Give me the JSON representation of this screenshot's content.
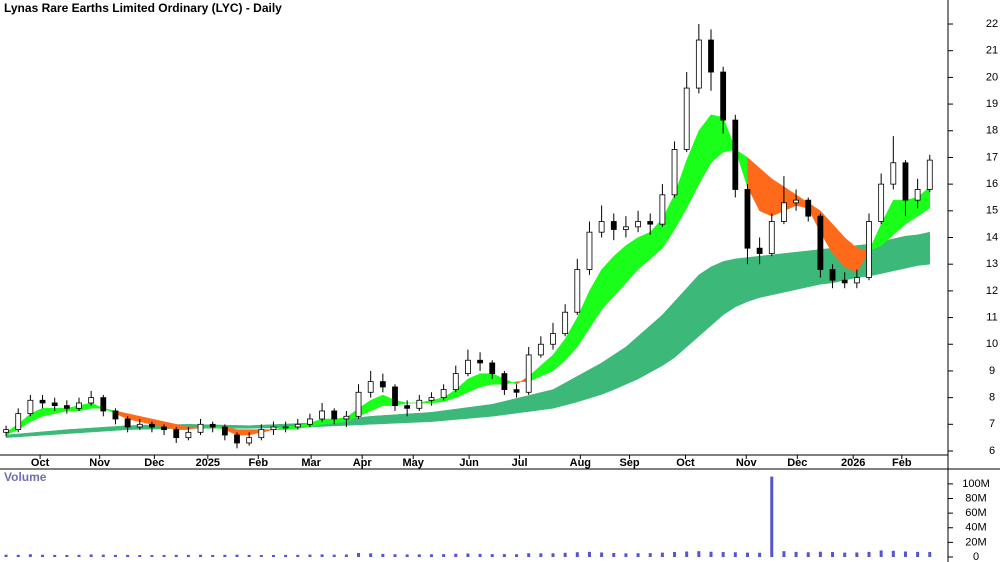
{
  "chart_data": {
    "type": "candlestick",
    "title": "Lynas Rare Earths Limited Ordinary (LYC) - Daily",
    "ohlc": [
      [
        6.7,
        6.95,
        6.55,
        6.8
      ],
      [
        6.8,
        7.6,
        6.7,
        7.4
      ],
      [
        7.4,
        8.1,
        7.3,
        7.9
      ],
      [
        7.9,
        8.1,
        7.6,
        7.8
      ],
      [
        7.8,
        8.0,
        7.5,
        7.7
      ],
      [
        7.7,
        7.9,
        7.4,
        7.6
      ],
      [
        7.6,
        8.0,
        7.5,
        7.8
      ],
      [
        7.8,
        8.25,
        7.7,
        8.0
      ],
      [
        8.0,
        8.1,
        7.3,
        7.5
      ],
      [
        7.5,
        7.6,
        7.0,
        7.2
      ],
      [
        7.2,
        7.3,
        6.7,
        6.9
      ],
      [
        6.9,
        7.2,
        6.8,
        7.0
      ],
      [
        7.0,
        7.1,
        6.7,
        6.9
      ],
      [
        6.9,
        7.0,
        6.6,
        6.8
      ],
      [
        6.8,
        6.9,
        6.3,
        6.5
      ],
      [
        6.5,
        6.9,
        6.4,
        6.7
      ],
      [
        6.7,
        7.2,
        6.6,
        7.0
      ],
      [
        7.0,
        7.1,
        6.7,
        6.9
      ],
      [
        6.9,
        7.0,
        6.4,
        6.6
      ],
      [
        6.6,
        6.7,
        6.1,
        6.3
      ],
      [
        6.3,
        6.7,
        6.2,
        6.5
      ],
      [
        6.5,
        7.0,
        6.4,
        6.8
      ],
      [
        6.8,
        7.1,
        6.6,
        6.9
      ],
      [
        6.9,
        7.1,
        6.7,
        6.9
      ],
      [
        6.9,
        7.2,
        6.8,
        7.0
      ],
      [
        7.0,
        7.4,
        6.9,
        7.2
      ],
      [
        7.2,
        7.8,
        7.1,
        7.5
      ],
      [
        7.5,
        7.6,
        7.0,
        7.2
      ],
      [
        7.2,
        7.5,
        6.9,
        7.3
      ],
      [
        7.3,
        8.5,
        7.2,
        8.2
      ],
      [
        8.2,
        9.0,
        8.0,
        8.6
      ],
      [
        8.6,
        8.9,
        8.2,
        8.4
      ],
      [
        8.4,
        8.5,
        7.5,
        7.7
      ],
      [
        7.7,
        7.9,
        7.3,
        7.6
      ],
      [
        7.6,
        8.1,
        7.5,
        7.9
      ],
      [
        7.9,
        8.2,
        7.7,
        8.0
      ],
      [
        8.0,
        8.5,
        7.9,
        8.3
      ],
      [
        8.3,
        9.2,
        8.2,
        8.9
      ],
      [
        8.9,
        9.8,
        8.8,
        9.4
      ],
      [
        9.4,
        9.7,
        9.0,
        9.3
      ],
      [
        9.3,
        9.4,
        8.7,
        8.9
      ],
      [
        8.9,
        9.0,
        8.1,
        8.3
      ],
      [
        8.3,
        8.5,
        8.0,
        8.2
      ],
      [
        8.2,
        9.9,
        8.1,
        9.6
      ],
      [
        9.6,
        10.3,
        9.5,
        10.0
      ],
      [
        10.0,
        10.8,
        9.8,
        10.4
      ],
      [
        10.4,
        11.5,
        10.3,
        11.2
      ],
      [
        11.2,
        13.2,
        11.1,
        12.8
      ],
      [
        12.8,
        14.6,
        12.6,
        14.2
      ],
      [
        14.2,
        15.2,
        14.0,
        14.6
      ],
      [
        14.6,
        14.9,
        13.9,
        14.3
      ],
      [
        14.3,
        14.8,
        14.0,
        14.4
      ],
      [
        14.4,
        15.0,
        14.2,
        14.6
      ],
      [
        14.6,
        14.9,
        14.1,
        14.5
      ],
      [
        14.5,
        16.0,
        14.4,
        15.6
      ],
      [
        15.6,
        17.6,
        15.5,
        17.3
      ],
      [
        17.3,
        20.2,
        17.2,
        19.6
      ],
      [
        19.6,
        22.0,
        19.4,
        21.4
      ],
      [
        21.4,
        21.8,
        19.5,
        20.2
      ],
      [
        20.2,
        20.4,
        17.9,
        18.4
      ],
      [
        18.4,
        18.6,
        15.5,
        15.8
      ],
      [
        15.8,
        16.0,
        13.0,
        13.6
      ],
      [
        13.6,
        14.0,
        13.0,
        13.4
      ],
      [
        13.4,
        14.9,
        13.3,
        14.6
      ],
      [
        14.6,
        16.3,
        14.5,
        15.3
      ],
      [
        15.3,
        15.8,
        15.0,
        15.4
      ],
      [
        15.4,
        15.5,
        14.6,
        14.8
      ],
      [
        14.8,
        14.9,
        12.5,
        12.8
      ],
      [
        12.8,
        13.0,
        12.1,
        12.4
      ],
      [
        12.4,
        12.7,
        12.1,
        12.3
      ],
      [
        12.3,
        12.8,
        12.1,
        12.5
      ],
      [
        12.5,
        14.9,
        12.4,
        14.6
      ],
      [
        14.6,
        16.4,
        14.5,
        16.0
      ],
      [
        16.0,
        17.8,
        15.8,
        16.8
      ],
      [
        16.8,
        16.9,
        14.8,
        15.4
      ],
      [
        15.4,
        16.2,
        15.1,
        15.8
      ],
      [
        15.8,
        17.1,
        15.7,
        16.9
      ]
    ],
    "bands": [
      {
        "fast": [
          6.6,
          6.64,
          6.68,
          6.72,
          6.76,
          6.8,
          6.83,
          6.86,
          6.89,
          6.92,
          6.95,
          6.96,
          6.97,
          6.98,
          6.99,
          7.0,
          6.99,
          6.98,
          6.97,
          6.96,
          6.95,
          6.97,
          6.99,
          7.01,
          7.03,
          7.05,
          7.1,
          7.15,
          7.2,
          7.25,
          7.3,
          7.33,
          7.36,
          7.39,
          7.42,
          7.45,
          7.51,
          7.57,
          7.63,
          7.69,
          7.75,
          7.86,
          7.97,
          8.08,
          8.19,
          8.3,
          8.55,
          8.8,
          9.05,
          9.3,
          9.6,
          9.9,
          10.3,
          10.7,
          11.1,
          11.6,
          12.1,
          12.6,
          12.9,
          13.1,
          13.2,
          13.25,
          13.3,
          13.35,
          13.4,
          13.45,
          13.5,
          13.55,
          13.6,
          13.65,
          13.7,
          13.75,
          13.85,
          13.95,
          14.05,
          14.1,
          14.2
        ],
        "slow": [
          6.5,
          6.53,
          6.56,
          6.59,
          6.62,
          6.65,
          6.68,
          6.71,
          6.74,
          6.77,
          6.8,
          6.81,
          6.82,
          6.83,
          6.84,
          6.85,
          6.85,
          6.85,
          6.85,
          6.85,
          6.85,
          6.86,
          6.87,
          6.88,
          6.89,
          6.9,
          6.92,
          6.94,
          6.96,
          6.98,
          7.0,
          7.02,
          7.04,
          7.06,
          7.08,
          7.1,
          7.14,
          7.18,
          7.22,
          7.26,
          7.3,
          7.36,
          7.42,
          7.48,
          7.54,
          7.6,
          7.72,
          7.84,
          7.98,
          8.12,
          8.3,
          8.5,
          8.7,
          8.95,
          9.2,
          9.5,
          9.9,
          10.3,
          10.7,
          11.1,
          11.4,
          11.6,
          11.75,
          11.85,
          11.95,
          12.05,
          12.15,
          12.25,
          12.3,
          12.4,
          12.5,
          12.55,
          12.65,
          12.75,
          12.85,
          12.95,
          13.0
        ],
        "color": "#3cb878"
      },
      {
        "fast": [
          6.7,
          7.0,
          7.4,
          7.6,
          7.6,
          7.6,
          7.7,
          7.8,
          7.6,
          7.4,
          7.2,
          7.1,
          7.0,
          6.9,
          6.8,
          6.8,
          6.9,
          6.9,
          6.8,
          6.6,
          6.6,
          6.7,
          6.8,
          6.9,
          6.95,
          7.05,
          7.2,
          7.2,
          7.25,
          7.6,
          7.9,
          8.1,
          7.9,
          7.8,
          7.8,
          7.9,
          8.0,
          8.3,
          8.7,
          8.9,
          8.9,
          8.7,
          8.5,
          8.8,
          9.2,
          9.6,
          10.2,
          11.0,
          12.0,
          12.8,
          13.3,
          13.7,
          14.0,
          14.2,
          14.7,
          15.6,
          16.9,
          18.0,
          18.6,
          18.5,
          17.3,
          15.9,
          15.0,
          14.8,
          15.0,
          15.2,
          15.1,
          14.2,
          13.4,
          12.9,
          12.7,
          13.5,
          14.5,
          15.4,
          15.4,
          15.5,
          15.9
        ],
        "slow": [
          6.6,
          6.8,
          7.1,
          7.3,
          7.4,
          7.5,
          7.5,
          7.6,
          7.6,
          7.5,
          7.4,
          7.3,
          7.2,
          7.1,
          7.0,
          6.9,
          6.9,
          6.9,
          6.9,
          6.8,
          6.8,
          6.8,
          6.8,
          6.8,
          6.85,
          6.9,
          7.0,
          7.05,
          7.1,
          7.3,
          7.5,
          7.7,
          7.7,
          7.8,
          7.8,
          7.8,
          7.85,
          8.0,
          8.2,
          8.4,
          8.5,
          8.5,
          8.6,
          8.6,
          8.8,
          9.0,
          9.4,
          9.9,
          10.6,
          11.3,
          11.8,
          12.3,
          12.8,
          13.2,
          13.6,
          14.3,
          15.1,
          16.0,
          16.8,
          17.2,
          17.3,
          17.0,
          16.6,
          16.2,
          15.9,
          15.6,
          15.3,
          15.0,
          14.5,
          14.0,
          13.6,
          13.5,
          13.7,
          14.1,
          14.5,
          14.8,
          15.1
        ],
        "colors": {
          "up": "#1aff1a",
          "down": "#ff6a1a"
        }
      }
    ],
    "xlim": [
      -0.5,
      77.5
    ],
    "xticks": [
      {
        "value": 2.8,
        "label": "Oct"
      },
      {
        "value": 7.7,
        "label": "Nov"
      },
      {
        "value": 12.2,
        "label": "Dec"
      },
      {
        "value": 16.6,
        "label": "2025"
      },
      {
        "value": 20.75,
        "label": "Feb"
      },
      {
        "value": 25.1,
        "label": "Mar"
      },
      {
        "value": 29.3,
        "label": "Apr"
      },
      {
        "value": 33.5,
        "label": "May"
      },
      {
        "value": 38.1,
        "label": "Jun"
      },
      {
        "value": 42.25,
        "label": "Jul"
      },
      {
        "value": 47.25,
        "label": "Aug"
      },
      {
        "value": 51.3,
        "label": "Sep"
      },
      {
        "value": 55.9,
        "label": "Oct"
      },
      {
        "value": 60.9,
        "label": "Nov"
      },
      {
        "value": 65.1,
        "label": "Dec"
      },
      {
        "value": 69.7,
        "label": "2026"
      },
      {
        "value": 73.7,
        "label": "Feb"
      }
    ],
    "ylim": [
      5.85,
      22.9
    ],
    "yticks": [
      6,
      7,
      8,
      9,
      10,
      11,
      12,
      13,
      14,
      15,
      16,
      17,
      18,
      19,
      20,
      21,
      22
    ],
    "volume": {
      "label": "Volume",
      "color": "#5555cc",
      "values": [
        3200000,
        3000000,
        3800000,
        3100000,
        2900000,
        2800000,
        3000000,
        3500000,
        3300000,
        3000000,
        2900000,
        2700000,
        2600000,
        2800000,
        3000000,
        2900000,
        3100000,
        2800000,
        3000000,
        3200000,
        2900000,
        2700000,
        2800000,
        2900000,
        3000000,
        3300000,
        3600000,
        3200000,
        3400000,
        5500000,
        5000000,
        4200000,
        3800000,
        3500000,
        3600000,
        3700000,
        3900000,
        4500000,
        4800000,
        4200000,
        3900000,
        4000000,
        3800000,
        5200000,
        5000000,
        5100000,
        5800000,
        6500000,
        7000000,
        6200000,
        5500000,
        5000000,
        5200000,
        5300000,
        6000000,
        6800000,
        7500000,
        8000000,
        7200000,
        6800000,
        6500000,
        6000000,
        5800000,
        110000000,
        8000000,
        7000000,
        6500000,
        7200000,
        6800000,
        6000000,
        6200000,
        7000000,
        9000000,
        8500000,
        7500000,
        7000000,
        6800000
      ],
      "ylim": [
        0,
        119000000
      ],
      "yticks": [
        0,
        {
          "value": 20000000,
          "label": "20M"
        },
        {
          "value": 40000000,
          "label": "40M"
        },
        {
          "value": 60000000,
          "label": "60M"
        },
        {
          "value": 80000000,
          "label": "80M"
        },
        {
          "value": 100000000,
          "label": "100M"
        }
      ]
    }
  }
}
